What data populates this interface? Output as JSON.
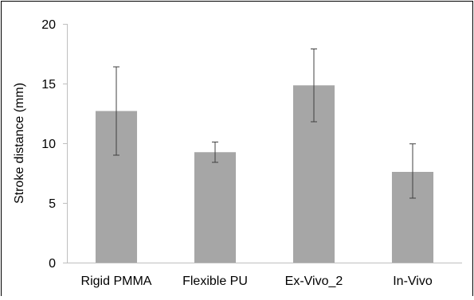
{
  "chart_data": {
    "type": "bar",
    "categories": [
      "Rigid PMMA",
      "Flexible PU",
      "Ex-Vivo_2",
      "In-Vivo"
    ],
    "values": [
      12.7,
      9.25,
      14.85,
      7.6
    ],
    "error_low": [
      9.0,
      8.4,
      11.8,
      5.4
    ],
    "error_high": [
      16.4,
      10.1,
      17.9,
      9.95
    ],
    "ylabel": "Stroke distance (mm)",
    "xlabel": "",
    "ylim": [
      0,
      20
    ],
    "yticks": [
      0,
      5,
      10,
      15,
      20
    ],
    "grid": false,
    "bar_color": "#a6a6a6",
    "errorbar_color": "#404040"
  }
}
